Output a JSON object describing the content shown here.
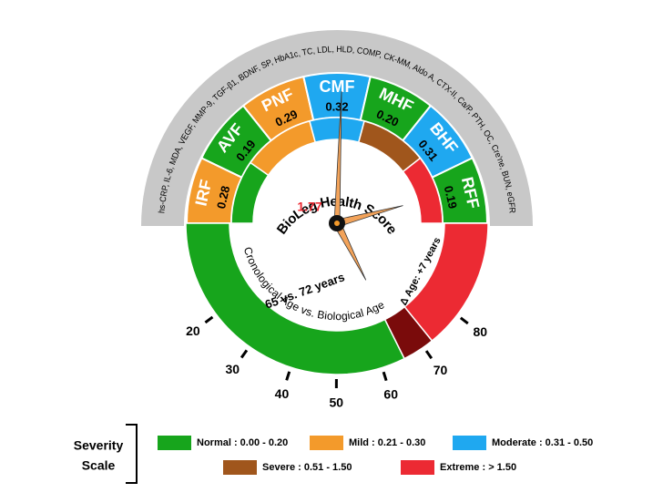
{
  "gauge": {
    "title": "BioLeg Health Score",
    "score": "1.77",
    "biomarkers": "hs-CRP, IL-6, MDA, VEGF, MMP-9, TGF-β1, BDNF, SP, HbA1c, TC, LDL, HLD, COMP, CK-MM, Aldo A, CTX-II, Ca/P, PTH, OC, Cre'ne, BUN, eGFR",
    "segments": [
      {
        "label": "IRF",
        "value": "0.28"
      },
      {
        "label": "AVF",
        "value": "0.19"
      },
      {
        "label": "PNF",
        "value": "0.29"
      },
      {
        "label": "CMF",
        "value": "0.32"
      },
      {
        "label": "MHF",
        "value": "0.20"
      },
      {
        "label": "BHF",
        "value": "0.31"
      },
      {
        "label": "RFF",
        "value": "0.19"
      }
    ],
    "age_comparison": "65 vs. 72 years",
    "age_axis_label": "Cronological Age vs. Biological Age",
    "delta_age": "Δ Age: +7 years",
    "age_ticks": [
      "20",
      "30",
      "40",
      "50",
      "60",
      "70",
      "80"
    ]
  },
  "legend": {
    "title": [
      "Severity",
      "Scale"
    ],
    "items": [
      "Normal : 0.00 - 0.20",
      "Mild : 0.21 - 0.30",
      "Moderate : 0.31 - 0.50",
      "Severe : 0.51 - 1.50",
      "Extreme : > 1.50"
    ]
  }
}
